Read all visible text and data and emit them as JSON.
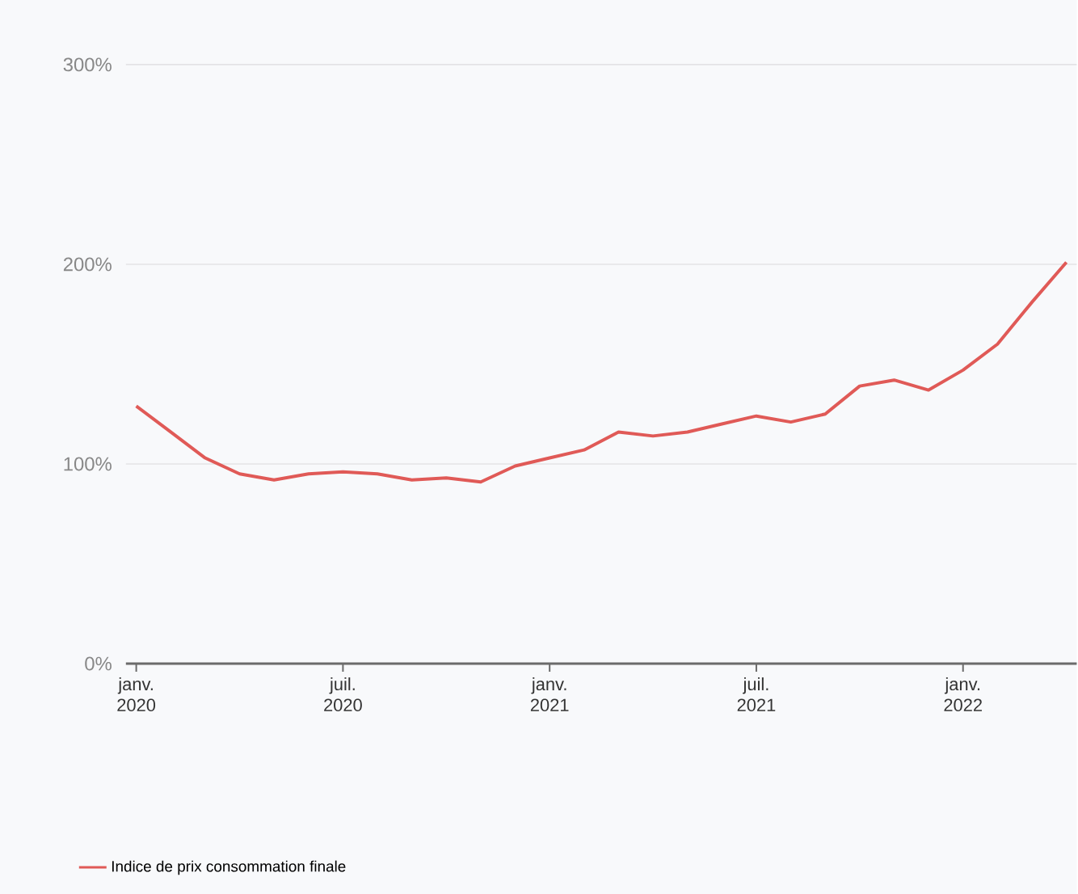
{
  "chart_data": {
    "type": "line",
    "x": [
      "2020-01",
      "2020-02",
      "2020-03",
      "2020-04",
      "2020-05",
      "2020-06",
      "2020-07",
      "2020-08",
      "2020-09",
      "2020-10",
      "2020-11",
      "2020-12",
      "2021-01",
      "2021-02",
      "2021-03",
      "2021-04",
      "2021-05",
      "2021-06",
      "2021-07",
      "2021-08",
      "2021-09",
      "2021-10",
      "2021-11",
      "2021-12",
      "2022-01",
      "2022-02",
      "2022-03",
      "2022-04"
    ],
    "series": [
      {
        "name": "Indice de prix consommation finale",
        "color": "#e05a57",
        "values": [
          129,
          116,
          103,
          95,
          92,
          95,
          96,
          95,
          92,
          93,
          91,
          99,
          103,
          107,
          116,
          114,
          116,
          120,
          124,
          121,
          125,
          139,
          142,
          137,
          147,
          160,
          181,
          201
        ]
      }
    ],
    "xlim": [
      "2019-12-22",
      "2022-04-10"
    ],
    "xticks": [
      {
        "value": "2020-01",
        "label": "janv. 2020"
      },
      {
        "value": "2020-07",
        "label": "juil. 2020"
      },
      {
        "value": "2021-01",
        "label": "janv. 2021"
      },
      {
        "value": "2021-07",
        "label": "juil. 2021"
      },
      {
        "value": "2022-01",
        "label": "janv. 2022"
      }
    ],
    "ylim": [
      0,
      300
    ],
    "yticks": [
      {
        "value": 0,
        "label": "0%"
      },
      {
        "value": 100,
        "label": "100%"
      },
      {
        "value": 200,
        "label": "200%"
      },
      {
        "value": 300,
        "label": "300%"
      }
    ],
    "grid": "y",
    "legend": "bottom left",
    "marker": "none",
    "line_style": "solid"
  }
}
